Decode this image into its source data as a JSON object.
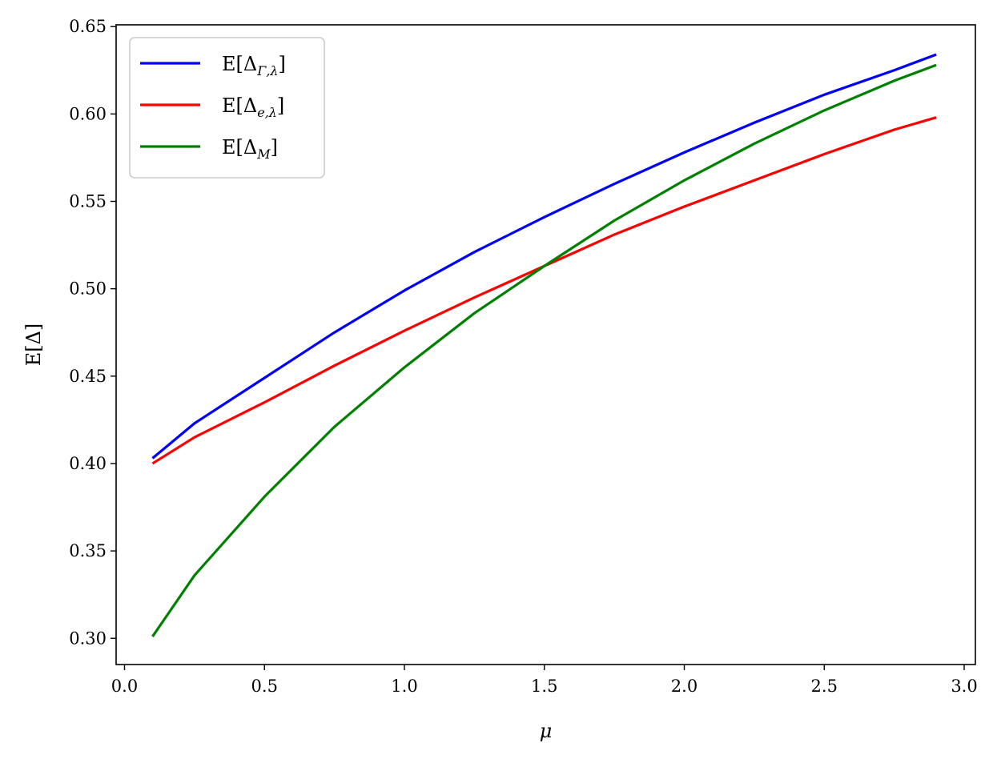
{
  "chart_data": {
    "type": "line",
    "title": "",
    "xlabel": "μ",
    "ylabel": "E[Δ]",
    "xlim": [
      -0.03,
      3.04
    ],
    "ylim": [
      0.285,
      0.651
    ],
    "xticks": [
      0.0,
      0.5,
      1.0,
      1.5,
      2.0,
      2.5,
      3.0
    ],
    "xtick_labels": [
      "0.0",
      "0.5",
      "1.0",
      "1.5",
      "2.0",
      "2.5",
      "3.0"
    ],
    "yticks": [
      0.3,
      0.35,
      0.4,
      0.45,
      0.5,
      0.55,
      0.6,
      0.65
    ],
    "ytick_labels": [
      "0.30",
      "0.35",
      "0.40",
      "0.45",
      "0.50",
      "0.55",
      "0.60",
      "0.65"
    ],
    "grid": false,
    "legend": {
      "placement": "top-left"
    },
    "x": [
      0.1,
      0.25,
      0.5,
      0.75,
      1.0,
      1.25,
      1.5,
      1.75,
      2.0,
      2.25,
      2.5,
      2.75,
      2.9
    ],
    "series": [
      {
        "name": "E[Δ",
        "sub": "Γ,λ",
        "suffix": "]",
        "color": "#0000ff",
        "values": [
          0.403,
          0.423,
          0.449,
          0.475,
          0.499,
          0.521,
          0.541,
          0.56,
          0.578,
          0.595,
          0.611,
          0.625,
          0.634
        ]
      },
      {
        "name": "E[Δ",
        "sub": "e,λ",
        "suffix": "]",
        "color": "#ff0000",
        "values": [
          0.4,
          0.415,
          0.435,
          0.456,
          0.476,
          0.495,
          0.513,
          0.531,
          0.547,
          0.562,
          0.577,
          0.591,
          0.598
        ]
      },
      {
        "name": "E[Δ",
        "sub": "M",
        "suffix": "]",
        "color": "#008000",
        "values": [
          0.301,
          0.336,
          0.381,
          0.421,
          0.455,
          0.486,
          0.513,
          0.539,
          0.562,
          0.583,
          0.602,
          0.619,
          0.628
        ]
      }
    ]
  }
}
